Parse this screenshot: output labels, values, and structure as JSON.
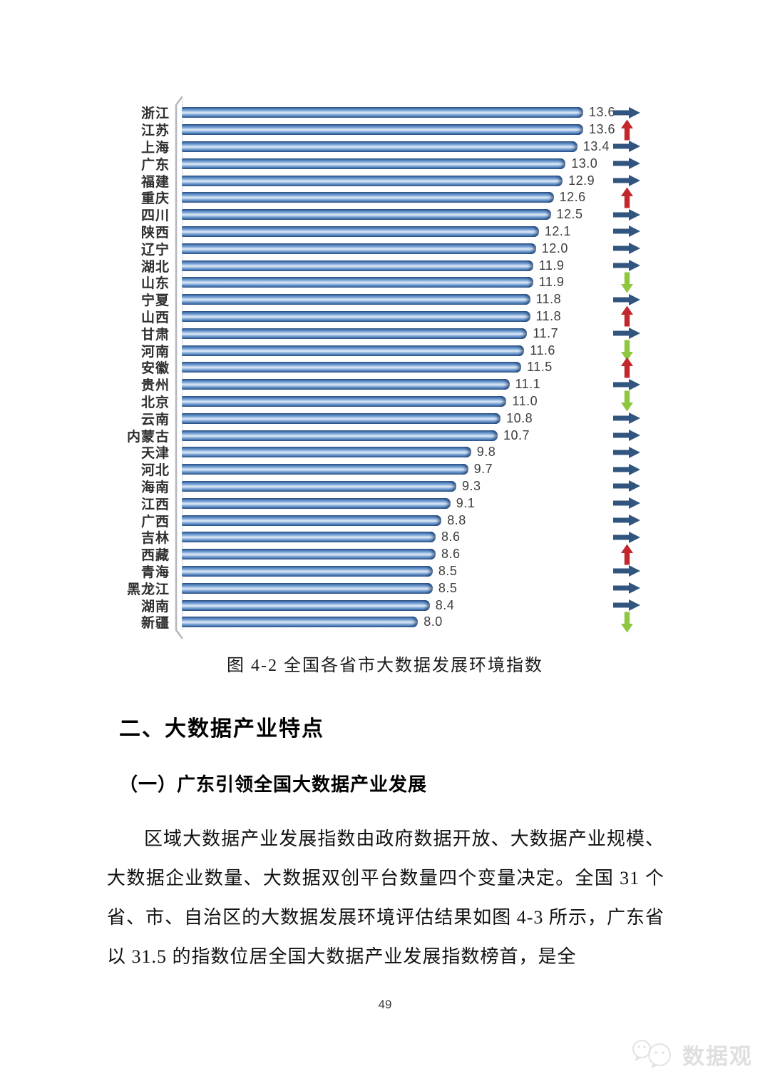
{
  "page": {
    "number": "49"
  },
  "chart": {
    "caption": "图 4-2 全国各省市大数据发展环境指数"
  },
  "chart_data": {
    "type": "bar",
    "orientation": "horizontal",
    "title": "图 4-2 全国各省市大数据发展环境指数",
    "categories": [
      "浙江",
      "江苏",
      "上海",
      "广东",
      "福建",
      "重庆",
      "四川",
      "陕西",
      "辽宁",
      "湖北",
      "山东",
      "宁夏",
      "山西",
      "甘肃",
      "河南",
      "安徽",
      "贵州",
      "北京",
      "云南",
      "内蒙古",
      "天津",
      "河北",
      "海南",
      "江西",
      "广西",
      "吉林",
      "西藏",
      "青海",
      "黑龙江",
      "湖南",
      "新疆"
    ],
    "values": [
      13.6,
      13.6,
      13.4,
      13.0,
      12.9,
      12.6,
      12.5,
      12.1,
      12.0,
      11.9,
      11.9,
      11.8,
      11.8,
      11.7,
      11.6,
      11.5,
      11.1,
      11.0,
      10.8,
      10.7,
      9.8,
      9.7,
      9.3,
      9.1,
      8.8,
      8.6,
      8.6,
      8.5,
      8.5,
      8.4,
      8.0
    ],
    "value_labels": [
      "13.6",
      "13.6",
      "13.4",
      "13.0",
      "12.9",
      "12.6",
      "12.5",
      "12.1",
      "12.0",
      "11.9",
      "11.9",
      "11.8",
      "11.8",
      "11.7",
      "11.6",
      "11.5",
      "11.1",
      "11.0",
      "10.8",
      "10.7",
      "9.8",
      "9.7",
      "9.3",
      "9.1",
      "8.8",
      "8.6",
      "8.6",
      "8.5",
      "8.5",
      "8.4",
      "8.0"
    ],
    "trends": [
      "flat",
      "up",
      "flat",
      "flat",
      "flat",
      "up",
      "flat",
      "flat",
      "flat",
      "flat",
      "down",
      "flat",
      "up",
      "flat",
      "down",
      "up",
      "flat",
      "down",
      "flat",
      "flat",
      "flat",
      "flat",
      "flat",
      "flat",
      "flat",
      "flat",
      "up",
      "flat",
      "flat",
      "flat",
      "down"
    ],
    "xlim": [
      0,
      14
    ],
    "grid": false,
    "data_labels": true,
    "bar_color": "#4f81bd",
    "bar_edge_color": "#2a4d7f",
    "trend_colors": {
      "flat": "#30557e",
      "up": "#c1272d",
      "down": "#8dc63f"
    },
    "axis_color": "#b3b7bd"
  },
  "sections": {
    "heading": "二、大数据产业特点",
    "subheading": "（一）广东引领全国大数据产业发展",
    "paragraph": "区域大数据产业发展指数由政府数据开放、大数据产业规模、大数据企业数量、大数据双创平台数量四个变量决定。全国 31 个省、市、自治区的大数据发展环境评估结果如图 4-3 所示，广东省以 31.5 的指数位居全国大数据产业发展指数榜首，是全"
  },
  "watermark": {
    "text": "数据观"
  }
}
